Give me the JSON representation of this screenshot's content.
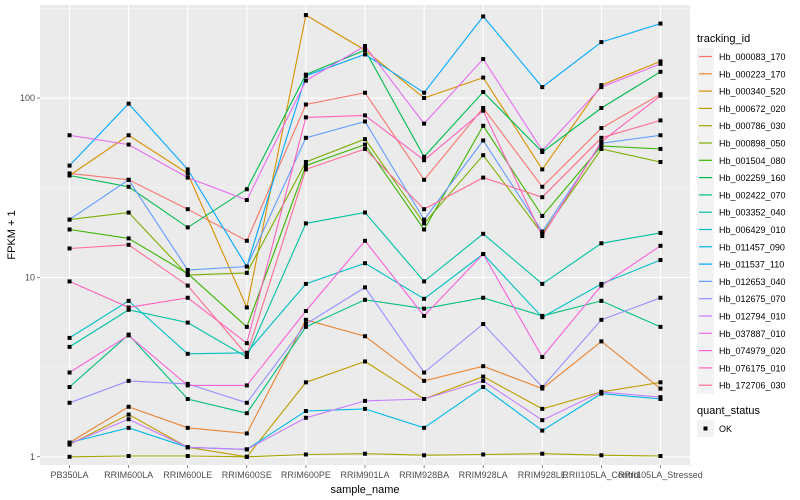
{
  "chart_data": {
    "type": "line",
    "title": "",
    "xlabel": "sample_name",
    "ylabel": "FPKM + 1",
    "yscale": "log10",
    "ylim": [
      0.9,
      330
    ],
    "yticks": [
      1,
      10,
      100
    ],
    "ytick_labels": [
      "1",
      "10",
      "100"
    ],
    "grid": true,
    "legend_position": "right",
    "categories": [
      "PB350LA",
      "RRIM600LA",
      "RRIM600LE",
      "RRIM600SE",
      "RRIM600PE",
      "RRIM901LA",
      "RRIM928BA",
      "RRIM928LA",
      "RRIM928LE",
      "RRII105LA_Control",
      "RRII105LA_Stressed"
    ],
    "color_legend": {
      "title": "tracking_id"
    },
    "shape_legend": {
      "title": "quant_status",
      "entries": [
        "OK"
      ]
    },
    "series": [
      {
        "name": "Hb_000083_170",
        "color": "#F8766D",
        "values": [
          38,
          35,
          24,
          16,
          92,
          107,
          35,
          88,
          32,
          68,
          105
        ]
      },
      {
        "name": "Hb_000223_170",
        "color": "#EA8331",
        "values": [
          1.2,
          1.9,
          1.45,
          1.35,
          5.8,
          4.7,
          2.65,
          3.2,
          2.4,
          4.4,
          2.4
        ]
      },
      {
        "name": "Hb_000340_520",
        "color": "#D89000",
        "values": [
          37,
          62,
          38,
          6.8,
          290,
          185,
          100,
          130,
          40,
          118,
          160
        ]
      },
      {
        "name": "Hb_000672_020",
        "color": "#C09B00",
        "values": [
          1.17,
          1.72,
          1.13,
          1.0,
          2.6,
          3.4,
          2.1,
          2.8,
          1.85,
          2.3,
          2.6
        ]
      },
      {
        "name": "Hb_000786_030",
        "color": "#A3A500",
        "values": [
          1.0,
          1.01,
          1.01,
          1.0,
          1.03,
          1.04,
          1.02,
          1.03,
          1.04,
          1.02,
          1.01
        ]
      },
      {
        "name": "Hb_000898_050",
        "color": "#7CAE00",
        "values": [
          21,
          23,
          10.3,
          10.6,
          44,
          59,
          20,
          48,
          17.5,
          52,
          44
        ]
      },
      {
        "name": "Hb_001504_080",
        "color": "#39B600",
        "values": [
          18.5,
          16.5,
          10.5,
          5.3,
          42,
          55,
          18.5,
          70,
          22,
          54,
          52
        ]
      },
      {
        "name": "Hb_002259_160",
        "color": "#00BB4E",
        "values": [
          37,
          32,
          19,
          31,
          135,
          185,
          47,
          108,
          50,
          88,
          140
        ]
      },
      {
        "name": "Hb_002422_070",
        "color": "#00BF7D",
        "values": [
          2.45,
          4.8,
          2.1,
          1.75,
          5.3,
          7.5,
          6.7,
          7.7,
          6.1,
          7.4,
          5.3
        ]
      },
      {
        "name": "Hb_003352_040",
        "color": "#00C1A3",
        "values": [
          4.1,
          6.6,
          5.6,
          3.6,
          20,
          23,
          9.5,
          17.5,
          9.2,
          15.5,
          17.7
        ]
      },
      {
        "name": "Hb_006429_010",
        "color": "#00BFC4",
        "values": [
          4.6,
          7.4,
          3.75,
          3.8,
          9.2,
          12,
          7.6,
          13.5,
          6.0,
          9.2,
          12.5
        ]
      },
      {
        "name": "Hb_011457_090",
        "color": "#00B8E7",
        "values": [
          1.2,
          1.45,
          1.13,
          1.1,
          1.8,
          1.85,
          1.45,
          2.45,
          1.4,
          2.25,
          2.1
        ]
      },
      {
        "name": "Hb_011537_110",
        "color": "#00A9FF",
        "values": [
          42,
          93,
          40,
          11.5,
          133,
          175,
          107,
          285,
          115,
          205,
          260
        ]
      },
      {
        "name": "Hb_012653_040",
        "color": "#619CFF",
        "values": [
          21,
          35,
          11,
          11.5,
          60,
          74,
          21,
          58,
          18,
          56,
          62
        ]
      },
      {
        "name": "Hb_012675_070",
        "color": "#9590FF",
        "values": [
          2.0,
          2.65,
          2.55,
          2.0,
          5.5,
          8.8,
          2.95,
          5.5,
          2.45,
          5.8,
          7.7
        ]
      },
      {
        "name": "Hb_012794_010",
        "color": "#C77CFF",
        "values": [
          1.18,
          1.62,
          1.13,
          1.1,
          1.65,
          2.05,
          2.1,
          2.65,
          1.6,
          2.3,
          2.15
        ]
      },
      {
        "name": "Hb_037887_010",
        "color": "#E76BF3",
        "values": [
          62,
          55,
          36,
          27,
          125,
          195,
          72,
          165,
          51,
          115,
          155
        ]
      },
      {
        "name": "Hb_074979_020",
        "color": "#FA62DB",
        "values": [
          2.95,
          4.75,
          2.5,
          2.5,
          6.5,
          16,
          6.1,
          13.5,
          3.6,
          9.0,
          15
        ]
      },
      {
        "name": "Hb_076175_010",
        "color": "#FF62BC",
        "values": [
          9.5,
          6.8,
          7.7,
          4.3,
          78,
          80,
          45,
          85,
          17,
          57,
          103
        ]
      },
      {
        "name": "Hb_172706_030",
        "color": "#FF6C91",
        "values": [
          14.5,
          15.2,
          9.0,
          3.7,
          40,
          52,
          24,
          36,
          28,
          60,
          75
        ]
      }
    ]
  }
}
